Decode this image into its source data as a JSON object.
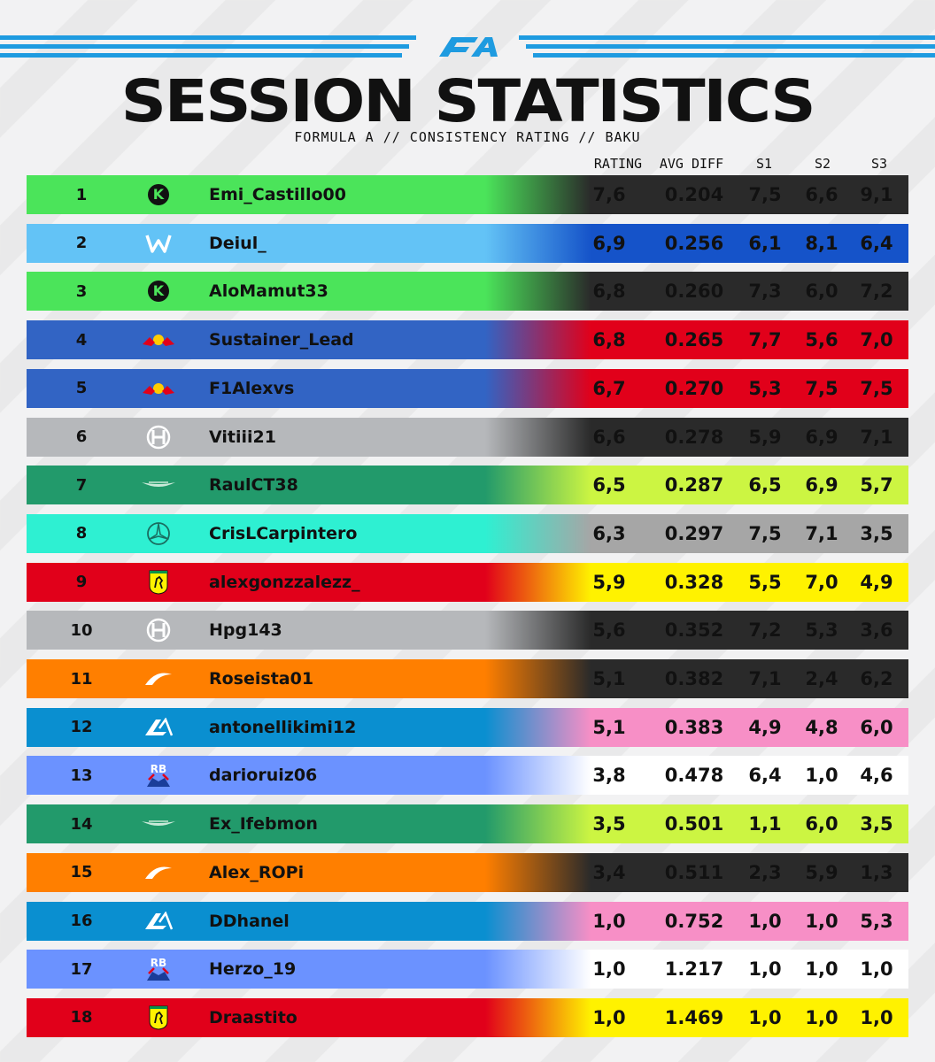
{
  "header": {
    "logo_icon": "formula-a-logo",
    "title": "SESSION STATISTICS",
    "subtitle": "FORMULA A // CONSISTENCY RATING // BAKU"
  },
  "columns": {
    "rating": "RATING",
    "avg_diff": "AVG DIFF",
    "s1": "S1",
    "s2": "S2",
    "s3": "S3"
  },
  "rows": [
    {
      "pos": "1",
      "team_icon": "sauber-icon",
      "name": "Emi_Castillo00",
      "rating": "7,6",
      "avg": "0.204",
      "s1": "7,5",
      "s2": "6,6",
      "s3": "9,1",
      "c1": "#4be45a",
      "c2": "#2a2a2a",
      "dark": false
    },
    {
      "pos": "2",
      "team_icon": "williams-icon",
      "name": "Deiul_",
      "rating": "6,9",
      "avg": "0.256",
      "s1": "6,1",
      "s2": "8,1",
      "s3": "6,4",
      "c1": "#63c3f6",
      "c2": "#1553c9",
      "dark": false
    },
    {
      "pos": "3",
      "team_icon": "sauber-icon",
      "name": "AloMamut33",
      "rating": "6,8",
      "avg": "0.260",
      "s1": "7,3",
      "s2": "6,0",
      "s3": "7,2",
      "c1": "#4be45a",
      "c2": "#2a2a2a",
      "dark": false
    },
    {
      "pos": "4",
      "team_icon": "redbull-icon",
      "name": "Sustainer_Lead",
      "rating": "6,8",
      "avg": "0.265",
      "s1": "7,7",
      "s2": "5,6",
      "s3": "7,0",
      "c1": "#3264c4",
      "c2": "#e1001a",
      "dark": false
    },
    {
      "pos": "5",
      "team_icon": "redbull-icon",
      "name": "F1Alexvs",
      "rating": "6,7",
      "avg": "0.270",
      "s1": "5,3",
      "s2": "7,5",
      "s3": "7,5",
      "c1": "#3264c4",
      "c2": "#e1001a",
      "dark": false
    },
    {
      "pos": "6",
      "team_icon": "haas-icon",
      "name": "Vitiii21",
      "rating": "6,6",
      "avg": "0.278",
      "s1": "5,9",
      "s2": "6,9",
      "s3": "7,1",
      "c1": "#b6b8bb",
      "c2": "#2a2a2a",
      "dark": false
    },
    {
      "pos": "7",
      "team_icon": "aston-martin-icon",
      "name": "RaulCT38",
      "rating": "6,5",
      "avg": "0.287",
      "s1": "6,5",
      "s2": "6,9",
      "s3": "5,7",
      "c1": "#229a6b",
      "c2": "#ccf542",
      "dark": false
    },
    {
      "pos": "8",
      "team_icon": "mercedes-icon",
      "name": "CrisLCarpintero",
      "rating": "6,3",
      "avg": "0.297",
      "s1": "7,5",
      "s2": "7,1",
      "s3": "3,5",
      "c1": "#2ef0d2",
      "c2": "#a6a6a6",
      "dark": false
    },
    {
      "pos": "9",
      "team_icon": "ferrari-icon",
      "name": "alexgonzzalezz_",
      "rating": "5,9",
      "avg": "0.328",
      "s1": "5,5",
      "s2": "7,0",
      "s3": "4,9",
      "c1": "#e1001a",
      "c2": "#fff200",
      "dark": false
    },
    {
      "pos": "10",
      "team_icon": "haas-icon",
      "name": "Hpg143",
      "rating": "5,6",
      "avg": "0.352",
      "s1": "7,2",
      "s2": "5,3",
      "s3": "3,6",
      "c1": "#b6b8bb",
      "c2": "#2a2a2a",
      "dark": false
    },
    {
      "pos": "11",
      "team_icon": "mclaren-icon",
      "name": "Roseista01",
      "rating": "5,1",
      "avg": "0.382",
      "s1": "7,1",
      "s2": "2,4",
      "s3": "6,2",
      "c1": "#ff7f00",
      "c2": "#2a2a2a",
      "dark": false
    },
    {
      "pos": "12",
      "team_icon": "alpine-icon",
      "name": "antonellikimi12",
      "rating": "5,1",
      "avg": "0.383",
      "s1": "4,9",
      "s2": "4,8",
      "s3": "6,0",
      "c1": "#0a8fd0",
      "c2": "#f78fc6",
      "dark": false
    },
    {
      "pos": "13",
      "team_icon": "racing-bulls-icon",
      "name": "darioruiz06",
      "rating": "3,8",
      "avg": "0.478",
      "s1": "6,4",
      "s2": "1,0",
      "s3": "4,6",
      "c1": "#6b92ff",
      "c2": "#ffffff",
      "dark": false
    },
    {
      "pos": "14",
      "team_icon": "aston-martin-icon",
      "name": "Ex_Ifebmon",
      "rating": "3,5",
      "avg": "0.501",
      "s1": "1,1",
      "s2": "6,0",
      "s3": "3,5",
      "c1": "#229a6b",
      "c2": "#ccf542",
      "dark": false
    },
    {
      "pos": "15",
      "team_icon": "mclaren-icon",
      "name": "Alex_ROPi",
      "rating": "3,4",
      "avg": "0.511",
      "s1": "2,3",
      "s2": "5,9",
      "s3": "1,3",
      "c1": "#ff7f00",
      "c2": "#2a2a2a",
      "dark": false
    },
    {
      "pos": "16",
      "team_icon": "alpine-icon",
      "name": "DDhanel",
      "rating": "1,0",
      "avg": "0.752",
      "s1": "1,0",
      "s2": "1,0",
      "s3": "5,3",
      "c1": "#0a8fd0",
      "c2": "#f78fc6",
      "dark": false
    },
    {
      "pos": "17",
      "team_icon": "racing-bulls-icon",
      "name": "Herzo_19",
      "rating": "1,0",
      "avg": "1.217",
      "s1": "1,0",
      "s2": "1,0",
      "s3": "1,0",
      "c1": "#6b92ff",
      "c2": "#ffffff",
      "dark": false
    },
    {
      "pos": "18",
      "team_icon": "ferrari-icon",
      "name": "Draastito",
      "rating": "1,0",
      "avg": "1.469",
      "s1": "1,0",
      "s2": "1,0",
      "s3": "1,0",
      "c1": "#e1001a",
      "c2": "#fff200",
      "dark": false
    }
  ]
}
